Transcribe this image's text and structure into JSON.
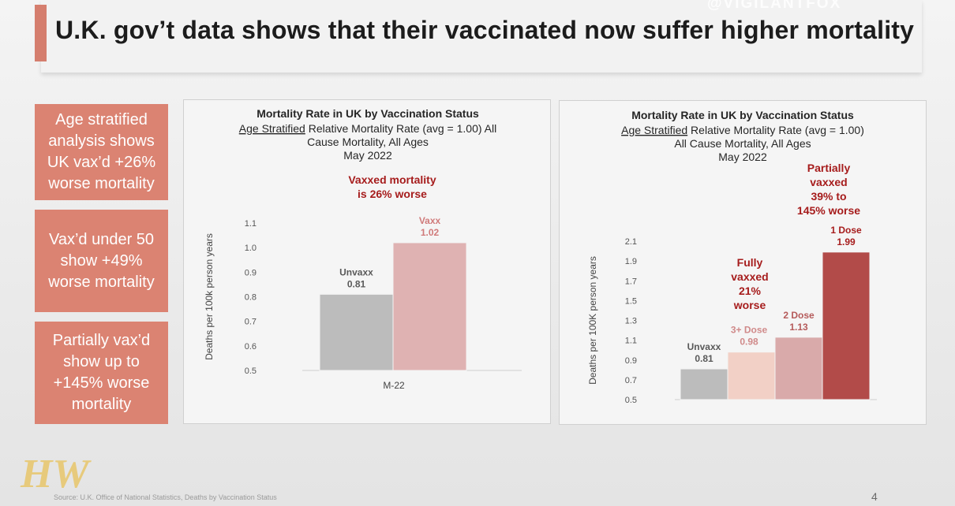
{
  "watermark": "@VIGILANTFOX",
  "title": "U.K. gov’t data shows that their vaccinated now suffer higher mortality",
  "callouts": [
    "Age stratified analysis shows UK vax’d +26% worse mortality",
    "Vax’d under 50 show +49% worse mortality",
    "Partially vax’d show up to +145% worse mortality"
  ],
  "colors": {
    "accent": "#d57e6e",
    "callout": "#db8372",
    "annotation_red": "#a61c1c",
    "unvaxx": "#bcbcbc",
    "vaxx": "#dfb2b2",
    "dose3": "#f2d0c6",
    "dose2": "#d9aaaa",
    "dose1": "#b24b49"
  },
  "chart_data": [
    {
      "type": "bar",
      "title": "Mortality Rate in UK by Vaccination Status",
      "subtitle_underlined": "Age Stratified",
      "subtitle_lines": [
        " Relative Mortality Rate (avg = 1.00) All",
        "Cause Mortality, All Ages",
        "May 2022"
      ],
      "annotation": [
        "Vaxxed  mortality",
        "is 26% worse"
      ],
      "ylabel": "Deaths per 100k person years",
      "xlabel_category": "M-22",
      "ylim": [
        0.5,
        1.1
      ],
      "yticks": [
        "1.1",
        "1.0",
        "0.9",
        "0.8",
        "0.7",
        "0.6",
        "0.5"
      ],
      "ytick_values": [
        1.1,
        1.0,
        0.9,
        0.8,
        0.7,
        0.6,
        0.5
      ],
      "series": [
        {
          "name": "Unvaxx",
          "value": 0.81,
          "label": "0.81"
        },
        {
          "name": "Vaxx",
          "value": 1.02,
          "label": "1.02"
        }
      ]
    },
    {
      "type": "bar",
      "title": "Mortality Rate in UK by Vaccination Status",
      "subtitle_underlined": "Age Stratified",
      "subtitle_lines": [
        " Relative Mortality Rate (avg = 1.00)",
        "All Cause Mortality, All Ages",
        "May 2022"
      ],
      "annotations": [
        [
          "Partially",
          "vaxxed",
          "39% to",
          "145% worse"
        ],
        [
          "Fully",
          "vaxxed",
          "21%",
          "worse"
        ]
      ],
      "ylabel": "Deaths per 100K person years",
      "ylim": [
        0.5,
        2.1
      ],
      "yticks": [
        "2.1",
        "1.9",
        "1.7",
        "1.5",
        "1.3",
        "1.1",
        "0.9",
        "0.7",
        "0.5"
      ],
      "ytick_values": [
        2.1,
        1.9,
        1.7,
        1.5,
        1.3,
        1.1,
        0.9,
        0.7,
        0.5
      ],
      "series": [
        {
          "name": "Unvaxx",
          "value": 0.81,
          "label": "0.81"
        },
        {
          "name": "3+ Dose",
          "value": 0.98,
          "label": "0.98"
        },
        {
          "name": "2 Dose",
          "value": 1.13,
          "label": "1.13"
        },
        {
          "name": "1 Dose",
          "value": 1.99,
          "label": "1.99"
        }
      ]
    }
  ],
  "logo_text": "HW",
  "source": "Source: U.K. Office of National Statistics, Deaths by Vaccination Status",
  "page_number": "4"
}
